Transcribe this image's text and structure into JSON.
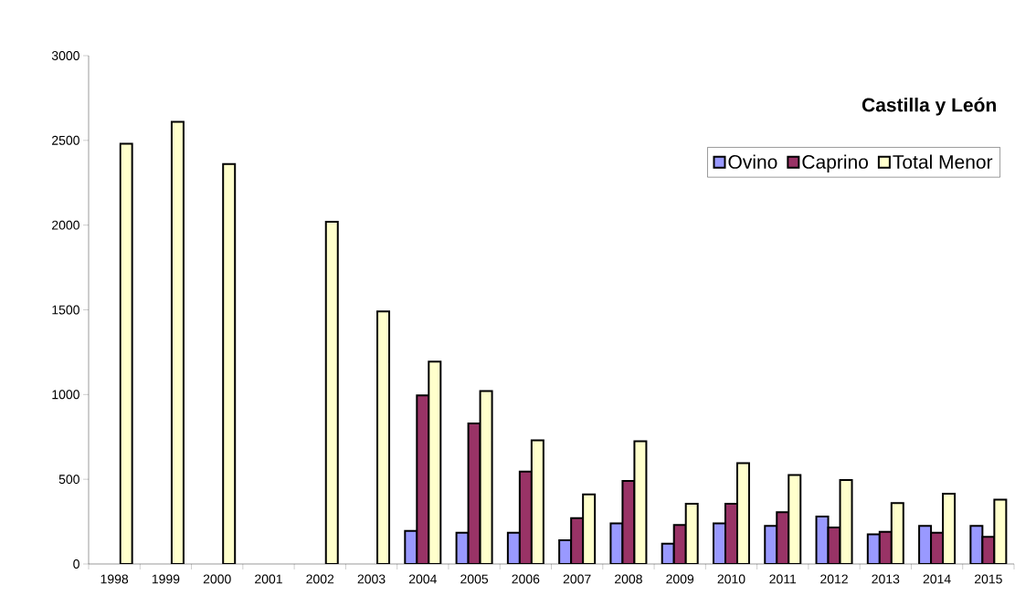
{
  "chart_data": {
    "type": "bar",
    "title": "Castilla y León",
    "categories": [
      "1998",
      "1999",
      "2000",
      "2001",
      "2002",
      "2003",
      "2004",
      "2005",
      "2006",
      "2007",
      "2008",
      "2009",
      "2010",
      "2011",
      "2012",
      "2013",
      "2014",
      "2015"
    ],
    "series": [
      {
        "name": "Ovino",
        "color": "#9999ff",
        "values": [
          null,
          null,
          null,
          null,
          null,
          null,
          195,
          185,
          185,
          140,
          240,
          120,
          240,
          225,
          280,
          175,
          225,
          225
        ]
      },
      {
        "name": "Caprino",
        "color": "#993366",
        "values": [
          null,
          null,
          null,
          null,
          null,
          null,
          995,
          830,
          545,
          270,
          490,
          230,
          355,
          305,
          215,
          190,
          185,
          160
        ]
      },
      {
        "name": "Total Menor",
        "color": "#ffffcc",
        "values": [
          2480,
          2610,
          2360,
          null,
          2020,
          1490,
          1195,
          1020,
          730,
          410,
          725,
          355,
          595,
          525,
          495,
          360,
          415,
          380
        ]
      }
    ],
    "ylim": [
      0,
      3000
    ],
    "yticks": [
      0,
      500,
      1000,
      1500,
      2000,
      2500,
      3000
    ],
    "legend": "top right"
  }
}
